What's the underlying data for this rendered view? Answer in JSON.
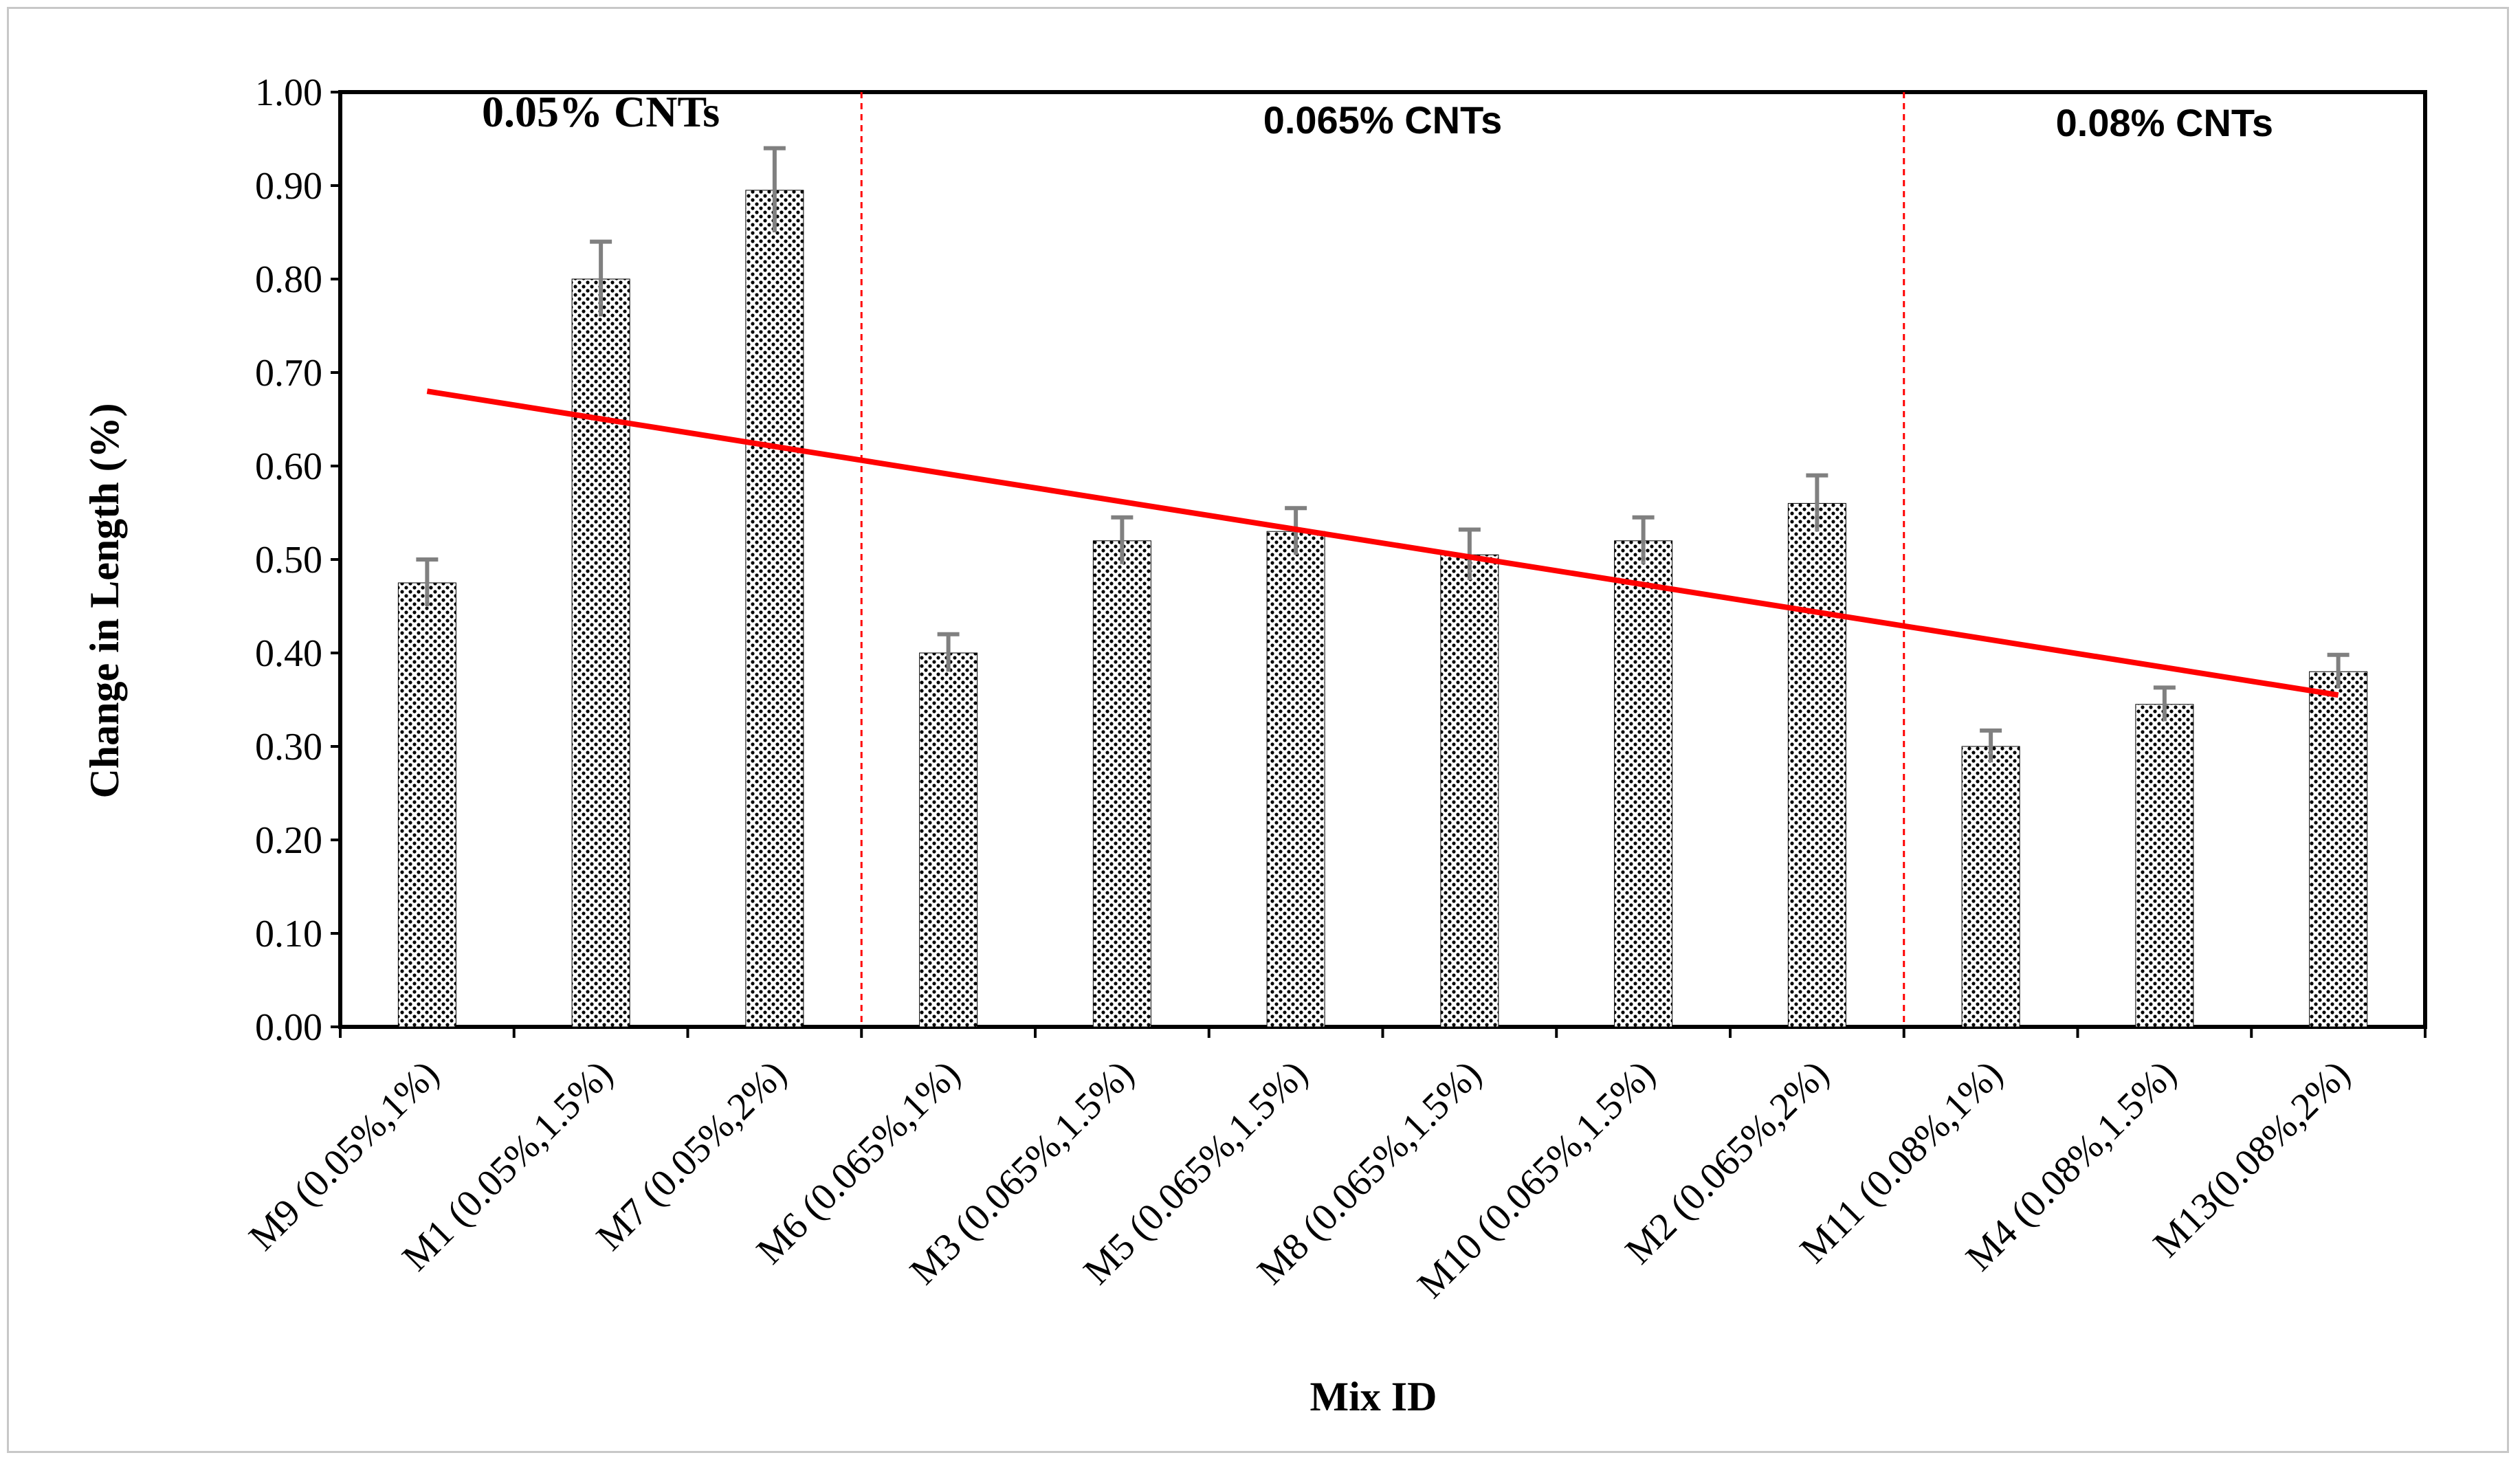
{
  "chart_data": {
    "type": "bar",
    "title": "",
    "xlabel": "Mix ID",
    "ylabel": "Change in Length (%)",
    "ylim": [
      0,
      1.0
    ],
    "yticks": [
      "0.00",
      "0.10",
      "0.20",
      "0.30",
      "0.40",
      "0.50",
      "0.60",
      "0.70",
      "0.80",
      "0.90",
      "1.00"
    ],
    "categories": [
      "M9 (0.05%,1%)",
      "M1 (0.05%,1.5%)",
      "M7 (0.05%,2%)",
      "M6 (0.065%,1%)",
      "M3 (0.065%,1.5%)",
      "M5 (0.065%,1.5%)",
      "M8 (0.065%,1.5%)",
      "M10 (0.065%,1.5%)",
      "M2 (0.065%,2%)",
      "M11 (0.08%,1%)",
      "M4 (0.08%,1.5%)",
      "M13(0.08%,2%)"
    ],
    "values": [
      0.475,
      0.8,
      0.895,
      0.4,
      0.52,
      0.53,
      0.505,
      0.52,
      0.56,
      0.3,
      0.345,
      0.38
    ],
    "errors": [
      0.025,
      0.04,
      0.045,
      0.02,
      0.025,
      0.025,
      0.027,
      0.025,
      0.03,
      0.017,
      0.018,
      0.018
    ],
    "trendline": {
      "start": [
        1,
        0.68
      ],
      "end": [
        12,
        0.355
      ],
      "color": "#ff0000"
    },
    "groups": [
      {
        "label": "0.05% CNTs",
        "from": 1,
        "to": 3
      },
      {
        "label": "0.065% CNTs",
        "from": 4,
        "to": 9
      },
      {
        "label": "0.08% CNTs",
        "from": 10,
        "to": 12
      }
    ],
    "dividers_after": [
      3,
      9
    ],
    "colors": {
      "bar_dots": "#000000",
      "error_bar": "#808080",
      "trend": "#ff0000",
      "divider": "#ff0000"
    }
  }
}
